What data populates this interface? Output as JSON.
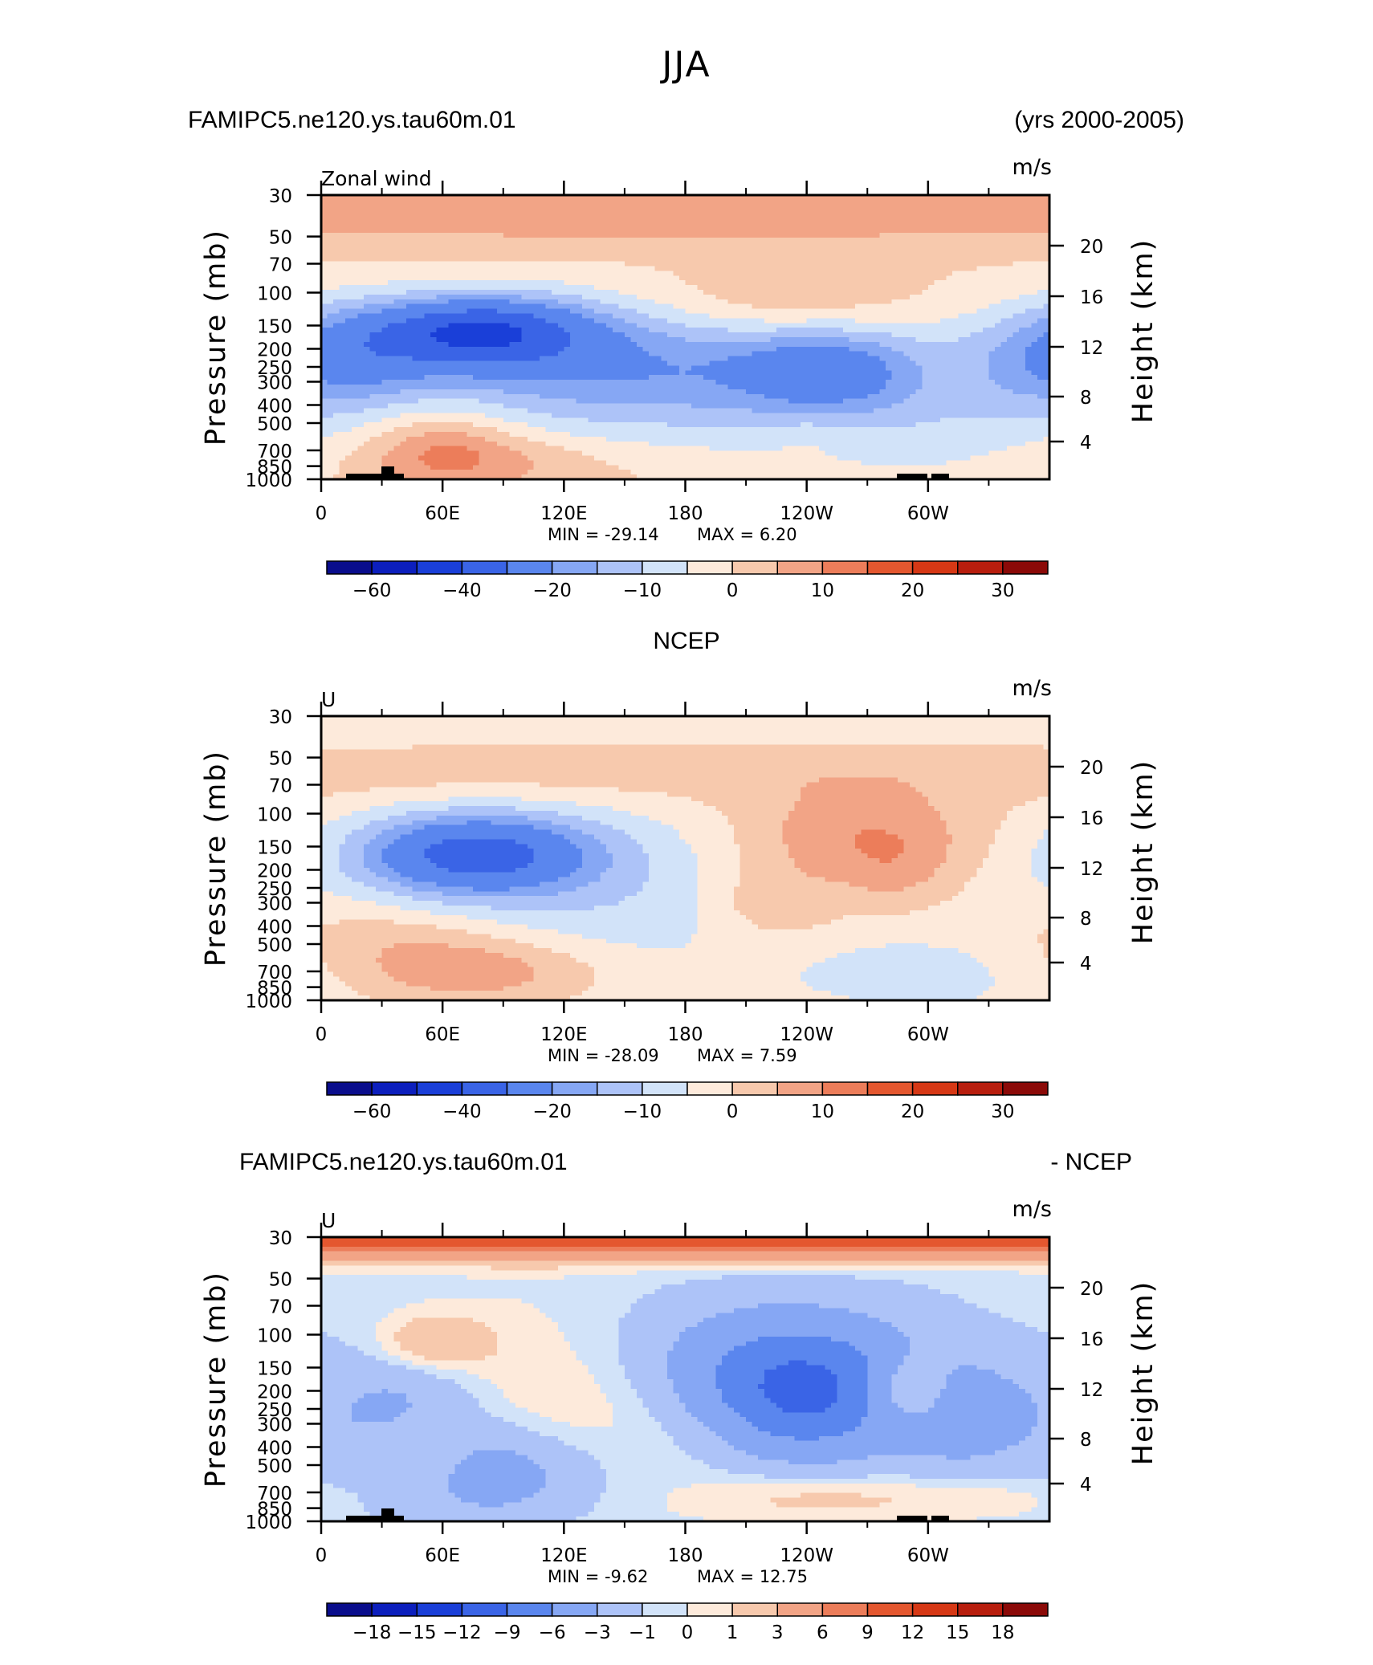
{
  "figure_title": "JJA",
  "colors": {
    "wind_levels": [
      -70,
      -60,
      -50,
      -40,
      -30,
      -20,
      -15,
      -10,
      -5,
      0,
      5,
      10,
      15,
      20,
      25,
      30,
      35
    ],
    "wind_palette": [
      "#0a0d8c",
      "#0c1fbd",
      "#1a3fd8",
      "#3a64e6",
      "#5a86ee",
      "#86a7f4",
      "#adc3f8",
      "#d2e3f9",
      "#fdeadb",
      "#f7c9ad",
      "#f2a486",
      "#ec7d5a",
      "#e4572f",
      "#d63815",
      "#b81e0e",
      "#8b0a08"
    ],
    "diff_palette": [
      "#0a0d8c",
      "#0c1fbd",
      "#1a3fd8",
      "#3a64e6",
      "#5a86ee",
      "#86a7f4",
      "#adc3f8",
      "#d2e3f9",
      "#fdeadb",
      "#f7c9ad",
      "#f2a486",
      "#ec7d5a",
      "#e4572f",
      "#d63815",
      "#b81e0e",
      "#8b0a08"
    ]
  },
  "chart_data": [
    {
      "type": "heatmap",
      "panel_title_left": "FAMIPC5.ne120.ys.tau60m.01",
      "panel_title_right": "(yrs 2000-2005)",
      "variable_label": "Zonal wind",
      "units": "m/s",
      "ylabel": "Pressure (mb)",
      "y2label": "Height (km)",
      "x_ticks": [
        "0",
        "60E",
        "120E",
        "180",
        "120W",
        "60W"
      ],
      "x_range_deg": [
        0,
        360
      ],
      "y_ticks_mb": [
        "30",
        "50",
        "70",
        "100",
        "150",
        "200",
        "250",
        "300",
        "400",
        "500",
        "700",
        "850",
        "1000"
      ],
      "y2_ticks_km": [
        "20",
        "16",
        "12",
        "8",
        "4"
      ],
      "min_text": "MIN = -29.14",
      "max_text": "MAX = 6.20",
      "colorbar_labels": [
        "-60",
        "-40",
        "-20",
        "-10",
        "0",
        "10",
        "20",
        "30"
      ],
      "colorbar_boundaries": [
        -70,
        -60,
        -50,
        -40,
        -30,
        -20,
        -15,
        -10,
        -5,
        0,
        5,
        10,
        15,
        20,
        25,
        30,
        35
      ],
      "base_value": 1,
      "features": [
        {
          "lon": 180,
          "p": 38,
          "v": 8,
          "lon_w": 230,
          "p_w": 0.25
        },
        {
          "lon": 78,
          "p": 160,
          "v": -32,
          "lon_w": 38,
          "p_w": 0.3
        },
        {
          "lon": 120,
          "p": 230,
          "v": -12,
          "lon_w": 90,
          "p_w": 0.55
        },
        {
          "lon": 170,
          "p": 300,
          "v": -10,
          "lon_w": 80,
          "p_w": 0.6
        },
        {
          "lon": 250,
          "p": 260,
          "v": -14,
          "lon_w": 30,
          "p_w": 0.35
        },
        {
          "lon": 10,
          "p": 220,
          "v": -14,
          "lon_w": 30,
          "p_w": 0.45
        },
        {
          "lon": 300,
          "p": 400,
          "v": -8,
          "lon_w": 60,
          "p_w": 0.8
        },
        {
          "lon": 230,
          "p": 115,
          "v": 7,
          "lon_w": 45,
          "p_w": 0.3
        },
        {
          "lon": 60,
          "p": 650,
          "v": 9,
          "lon_w": 25,
          "p_w": 0.35
        },
        {
          "lon": 80,
          "p": 800,
          "v": 6,
          "lon_w": 45,
          "p_w": 0.25
        },
        {
          "lon": 245,
          "p": 580,
          "v": 3,
          "lon_w": 20,
          "p_w": 0.15
        }
      ]
    },
    {
      "type": "heatmap",
      "panel_title_center": "NCEP",
      "variable_label": "U",
      "units": "m/s",
      "ylabel": "Pressure (mb)",
      "y2label": "Height (km)",
      "x_ticks": [
        "0",
        "60E",
        "120E",
        "180",
        "120W",
        "60W"
      ],
      "x_range_deg": [
        0,
        360
      ],
      "y_ticks_mb": [
        "30",
        "50",
        "70",
        "100",
        "150",
        "200",
        "250",
        "300",
        "400",
        "500",
        "700",
        "850",
        "1000"
      ],
      "y2_ticks_km": [
        "20",
        "16",
        "12",
        "8",
        "4"
      ],
      "min_text": "MIN = -28.09",
      "max_text": "MAX = 7.59",
      "colorbar_labels": [
        "-60",
        "-40",
        "-20",
        "-10",
        "0",
        "10",
        "20",
        "30"
      ],
      "colorbar_boundaries": [
        -70,
        -60,
        -50,
        -40,
        -30,
        -20,
        -15,
        -10,
        -5,
        0,
        5,
        10,
        15,
        20,
        25,
        30,
        35
      ],
      "base_value": -3,
      "features": [
        {
          "lon": 190,
          "p": 60,
          "v": 6,
          "lon_w": 300,
          "p_w": 0.3
        },
        {
          "lon": 75,
          "p": 165,
          "v": -30,
          "lon_w": 40,
          "p_w": 0.35
        },
        {
          "lon": 140,
          "p": 250,
          "v": -6,
          "lon_w": 60,
          "p_w": 0.7
        },
        {
          "lon": 265,
          "p": 130,
          "v": 12,
          "lon_w": 45,
          "p_w": 0.4
        },
        {
          "lon": 225,
          "p": 300,
          "v": 8,
          "lon_w": 25,
          "p_w": 0.35
        },
        {
          "lon": 285,
          "p": 220,
          "v": 6,
          "lon_w": 20,
          "p_w": 0.35
        },
        {
          "lon": 75,
          "p": 700,
          "v": 12,
          "lon_w": 45,
          "p_w": 0.3
        },
        {
          "lon": 30,
          "p": 450,
          "v": 5,
          "lon_w": 40,
          "p_w": 0.3
        },
        {
          "lon": 300,
          "p": 700,
          "v": -4,
          "lon_w": 50,
          "p_w": 0.35
        }
      ]
    },
    {
      "type": "heatmap",
      "panel_title_left": "FAMIPC5.ne120.ys.tau60m.01",
      "panel_title_right": "- NCEP",
      "variable_label": "U",
      "units": "m/s",
      "ylabel": "Pressure (mb)",
      "y2label": "Height (km)",
      "x_ticks": [
        "0",
        "60E",
        "120E",
        "180",
        "120W",
        "60W"
      ],
      "x_range_deg": [
        0,
        360
      ],
      "y_ticks_mb": [
        "30",
        "50",
        "70",
        "100",
        "150",
        "200",
        "250",
        "300",
        "400",
        "500",
        "700",
        "850",
        "1000"
      ],
      "y2_ticks_km": [
        "20",
        "16",
        "12",
        "8",
        "4"
      ],
      "min_text": "MIN = -9.62",
      "max_text": "MAX = 12.75",
      "colorbar_labels": [
        "-18",
        "-15",
        "-12",
        "-9",
        "-6",
        "-3",
        "-1",
        "0",
        "1",
        "3",
        "6",
        "9",
        "12",
        "15",
        "18"
      ],
      "colorbar_boundaries": [
        -21,
        -18,
        -15,
        -12,
        -9,
        -6,
        -3,
        -1,
        0,
        1,
        3,
        6,
        9,
        12,
        15,
        18,
        21
      ],
      "base_value": -0.5,
      "features": [
        {
          "lon": 180,
          "p": 30,
          "v": 12,
          "lon_w": 400,
          "p_w": 0.18
        },
        {
          "lon": 120,
          "p": 250,
          "v": 2.5,
          "lon_w": 55,
          "p_w": 0.9
        },
        {
          "lon": 240,
          "p": 220,
          "v": -7,
          "lon_w": 35,
          "p_w": 0.55
        },
        {
          "lon": 215,
          "p": 140,
          "v": -4,
          "lon_w": 60,
          "p_w": 0.6
        },
        {
          "lon": 85,
          "p": 550,
          "v": -5,
          "lon_w": 40,
          "p_w": 0.45
        },
        {
          "lon": 40,
          "p": 250,
          "v": -3.5,
          "lon_w": 30,
          "p_w": 0.6
        },
        {
          "lon": 320,
          "p": 280,
          "v": -3.5,
          "lon_w": 25,
          "p_w": 0.5
        },
        {
          "lon": 290,
          "p": 200,
          "v": 4,
          "lon_w": 15,
          "p_w": 0.3
        },
        {
          "lon": 55,
          "p": 110,
          "v": 3.5,
          "lon_w": 20,
          "p_w": 0.25
        },
        {
          "lon": 50,
          "p": 450,
          "v": 3,
          "lon_w": 20,
          "p_w": 0.35
        },
        {
          "lon": 240,
          "p": 750,
          "v": 2,
          "lon_w": 35,
          "p_w": 0.2
        },
        {
          "lon": 320,
          "p": 750,
          "v": 1.5,
          "lon_w": 40,
          "p_w": 0.2
        }
      ]
    }
  ]
}
